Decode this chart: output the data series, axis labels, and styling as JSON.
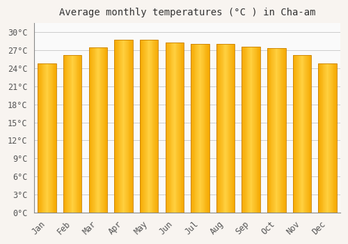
{
  "title": "Average monthly temperatures (°C ) in Cha-am",
  "months": [
    "Jan",
    "Feb",
    "Mar",
    "Apr",
    "May",
    "Jun",
    "Jul",
    "Aug",
    "Sep",
    "Oct",
    "Nov",
    "Dec"
  ],
  "temperatures": [
    24.8,
    26.2,
    27.5,
    28.8,
    28.7,
    28.3,
    28.0,
    28.1,
    27.6,
    27.4,
    26.2,
    24.8
  ],
  "bar_color_center": "#FFD040",
  "bar_color_edge": "#F5A800",
  "bar_edge_color": "#C88000",
  "background_color": "#F8F4F0",
  "plot_bg_color": "#FAFAFA",
  "grid_color": "#CCCCCC",
  "yticks": [
    0,
    3,
    6,
    9,
    12,
    15,
    18,
    21,
    24,
    27,
    30
  ],
  "ylim": [
    0,
    31.5
  ],
  "title_fontsize": 10,
  "tick_fontsize": 8.5,
  "font_family": "monospace"
}
